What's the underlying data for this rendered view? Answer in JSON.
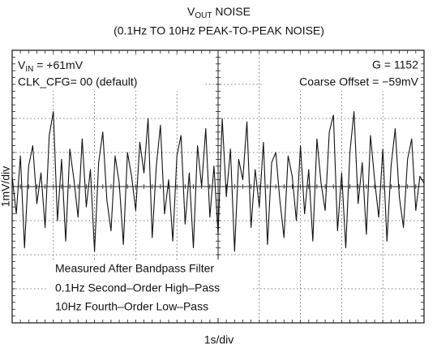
{
  "chart_data": {
    "type": "line",
    "title": [
      "V",
      "OUT",
      " NOISE"
    ],
    "subtitle": "(0.1Hz TO 10Hz PEAK-TO-PEAK NOISE)",
    "x_label": "1s/div",
    "y_label": "1mV/div",
    "annotations": {
      "vin": [
        "V",
        "IN",
        " = +61mV"
      ],
      "clk": "CLK_CFG= 00 (default)",
      "gain": "G = 1152",
      "offset": "Coarse Offset = −59mV",
      "filter": [
        "Measured After Bandpass Filter",
        "0.1Hz Second–Order High–Pass",
        "10Hz Fourth–Order Low–Pass"
      ]
    },
    "x": [
      0,
      0.1,
      0.2,
      0.3,
      0.4,
      0.5,
      0.6,
      0.7,
      0.8,
      0.9,
      1,
      1.1,
      1.2,
      1.3,
      1.4,
      1.5,
      1.6,
      1.7,
      1.8,
      1.9,
      2,
      2.1,
      2.2,
      2.3,
      2.4,
      2.5,
      2.6,
      2.7,
      2.8,
      2.9,
      3,
      3.1,
      3.2,
      3.3,
      3.4,
      3.5,
      3.6,
      3.7,
      3.8,
      3.9,
      4,
      4.1,
      4.2,
      4.3,
      4.4,
      4.5,
      4.6,
      4.7,
      4.8,
      4.9,
      5,
      5.1,
      5.2,
      5.3,
      5.4,
      5.5,
      5.6,
      5.7,
      5.8,
      5.9,
      6,
      6.1,
      6.2,
      6.3,
      6.4,
      6.5,
      6.6,
      6.7,
      6.8,
      6.9,
      7,
      7.1,
      7.2,
      7.3,
      7.4,
      7.5,
      7.6,
      7.7,
      7.8,
      7.9,
      8,
      8.1,
      8.2,
      8.3,
      8.4,
      8.5,
      8.6,
      8.7,
      8.8,
      8.9,
      9,
      9.1,
      9.2,
      9.3,
      9.4,
      9.5,
      9.6,
      9.7,
      9.8,
      9.9,
      10
    ],
    "series": [
      {
        "color": "#111111",
        "values": [
          0.3,
          -0.8,
          0.9,
          -1.8,
          0.6,
          1.2,
          -0.5,
          0.4,
          -1.2,
          1.5,
          2.2,
          -1.0,
          0.8,
          -1.6,
          1.1,
          0.2,
          -0.9,
          1.4,
          -0.6,
          0.5,
          -1.9,
          0.7,
          1.6,
          -0.4,
          -1.3,
          0.9,
          0.1,
          -1.7,
          1.0,
          0.3,
          -0.7,
          1.3,
          0.4,
          2.0,
          -1.5,
          0.6,
          1.8,
          -0.8,
          0.2,
          -1.6,
          0.9,
          1.5,
          -1.1,
          0.4,
          -1.8,
          1.2,
          0.0,
          1.7,
          -0.9,
          0.6,
          -1.4,
          2.0,
          -0.3,
          1.1,
          -1.9,
          0.8,
          0.2,
          1.9,
          -1.2,
          0.5,
          -0.6,
          1.3,
          -1.7,
          0.7,
          1.0,
          -0.4,
          -1.5,
          0.9,
          0.3,
          -1.0,
          1.2,
          -0.8,
          0.5,
          -1.6,
          1.4,
          0.1,
          -0.7,
          1.6,
          2.1,
          -1.3,
          0.4,
          -1.8,
          1.0,
          2.2,
          -0.5,
          0.7,
          -1.4,
          1.5,
          0.2,
          -0.9,
          1.1,
          -1.6,
          0.6,
          1.7,
          -0.3,
          -1.2,
          0.8,
          1.4,
          -0.7,
          0.3,
          0.1
        ]
      }
    ],
    "xlim": [
      0,
      10
    ],
    "xticks": [
      0,
      1,
      2,
      3,
      4,
      5,
      6,
      7,
      8,
      9,
      10
    ],
    "ylim": [
      -4,
      4
    ],
    "yticks": [
      -4,
      -3,
      -2,
      -1,
      0,
      1,
      2,
      3,
      4
    ],
    "grid": true
  }
}
